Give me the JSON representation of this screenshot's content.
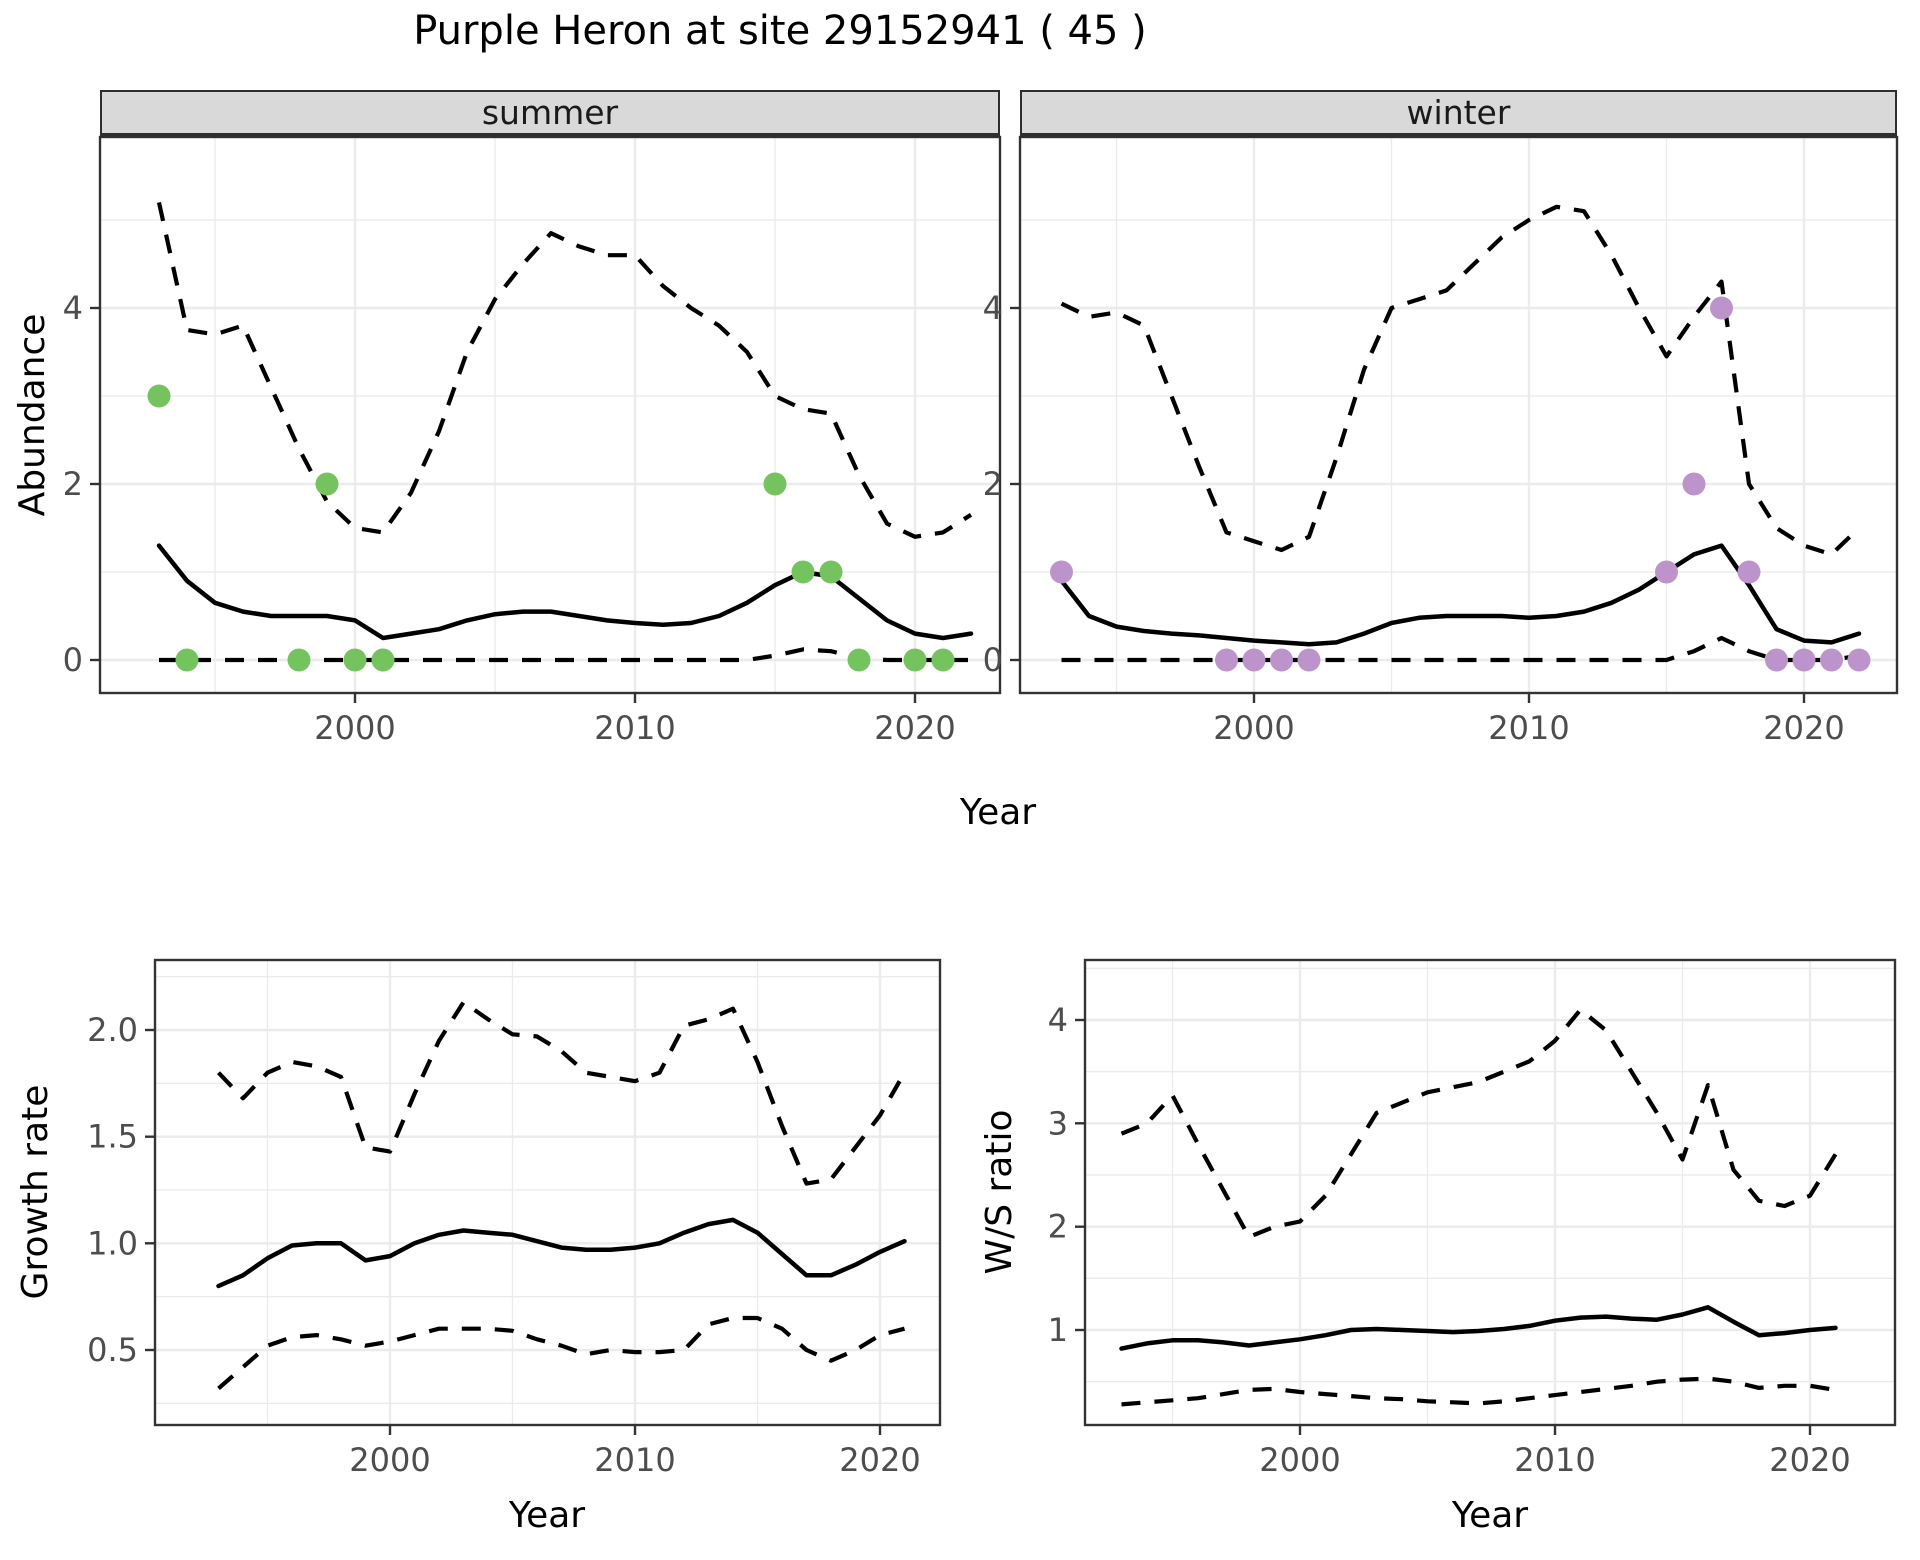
{
  "title": "Purple Heron at site 29152941 ( 45 )",
  "labels": {
    "year_axis": "Year",
    "abundance_axis": "Abundance",
    "growth_axis": "Growth rate",
    "ws_axis": "W/S ratio"
  },
  "facets": [
    {
      "label": "summer"
    },
    {
      "label": "winter"
    }
  ],
  "colors": {
    "summer_points": "#74c35e",
    "winter_points": "#bd93cc",
    "line": "#000000",
    "gridline": "#ebebeb",
    "panel_border": "#333333",
    "strip_bg": "#d9d9d9",
    "tick_text": "#4d4d4d"
  },
  "chart_data": [
    {
      "id": "summer-abundance",
      "type": "line",
      "facet": "summer",
      "xlabel": "Year",
      "ylabel": "Abundance",
      "legend": "none",
      "grid": true,
      "ylim": [
        0,
        5.9
      ],
      "x_ticks": [
        "2000",
        "2010",
        "2020"
      ],
      "x_minor": [
        1995,
        2005,
        2015
      ],
      "y_ticks": [
        "0",
        "2",
        "4"
      ],
      "y_minor": [
        1,
        3,
        5
      ],
      "years": [
        1993,
        1994,
        1995,
        1996,
        1997,
        1998,
        1999,
        2000,
        2001,
        2002,
        2003,
        2004,
        2005,
        2006,
        2007,
        2008,
        2009,
        2010,
        2011,
        2012,
        2013,
        2014,
        2015,
        2016,
        2017,
        2018,
        2019,
        2020,
        2021,
        2022
      ],
      "series": [
        {
          "name": "mean",
          "style": "solid",
          "values": [
            1.3,
            0.9,
            0.65,
            0.55,
            0.5,
            0.5,
            0.5,
            0.45,
            0.25,
            0.3,
            0.35,
            0.45,
            0.52,
            0.55,
            0.55,
            0.5,
            0.45,
            0.42,
            0.4,
            0.42,
            0.5,
            0.65,
            0.85,
            1.0,
            0.95,
            0.7,
            0.45,
            0.3,
            0.25,
            0.3
          ]
        },
        {
          "name": "upper-ci",
          "style": "dashed",
          "values": [
            5.2,
            3.75,
            3.7,
            3.8,
            3.1,
            2.4,
            1.8,
            1.5,
            1.45,
            1.9,
            2.6,
            3.5,
            4.1,
            4.5,
            4.85,
            4.7,
            4.6,
            4.6,
            4.25,
            4.0,
            3.8,
            3.5,
            3.0,
            2.85,
            2.8,
            2.1,
            1.55,
            1.4,
            1.45,
            1.65
          ]
        },
        {
          "name": "lower-ci",
          "style": "dashed",
          "values": [
            0,
            0,
            0,
            0,
            0,
            0,
            0,
            0,
            0,
            0,
            0,
            0,
            0,
            0,
            0,
            0,
            0,
            0,
            0,
            0,
            0,
            0,
            0.05,
            0.12,
            0.1,
            0.02,
            0,
            0,
            0,
            0
          ]
        }
      ],
      "observations": {
        "color": "#74c35e",
        "points": [
          [
            1993,
            3
          ],
          [
            1994,
            0
          ],
          [
            1998,
            0
          ],
          [
            1999,
            2
          ],
          [
            2000,
            0
          ],
          [
            2001,
            0
          ],
          [
            2015,
            2
          ],
          [
            2016,
            1
          ],
          [
            2017,
            1
          ],
          [
            2018,
            0
          ],
          [
            2020,
            0
          ],
          [
            2021,
            0
          ]
        ]
      }
    },
    {
      "id": "winter-abundance",
      "type": "line",
      "facet": "winter",
      "xlabel": "Year",
      "ylabel": "Abundance",
      "legend": "none",
      "grid": true,
      "ylim": [
        0,
        5.9
      ],
      "x_ticks": [
        "2000",
        "2010",
        "2020"
      ],
      "x_minor": [
        1995,
        2005,
        2015
      ],
      "y_ticks": [
        "0",
        "2",
        "4"
      ],
      "y_minor": [
        1,
        3,
        5
      ],
      "years": [
        1993,
        1994,
        1995,
        1996,
        1997,
        1998,
        1999,
        2000,
        2001,
        2002,
        2003,
        2004,
        2005,
        2006,
        2007,
        2008,
        2009,
        2010,
        2011,
        2012,
        2013,
        2014,
        2015,
        2016,
        2017,
        2018,
        2019,
        2020,
        2021,
        2022
      ],
      "series": [
        {
          "name": "mean",
          "style": "solid",
          "values": [
            0.9,
            0.5,
            0.38,
            0.33,
            0.3,
            0.28,
            0.25,
            0.22,
            0.2,
            0.18,
            0.2,
            0.3,
            0.42,
            0.48,
            0.5,
            0.5,
            0.5,
            0.48,
            0.5,
            0.55,
            0.65,
            0.8,
            1.0,
            1.2,
            1.3,
            0.85,
            0.35,
            0.22,
            0.2,
            0.3
          ]
        },
        {
          "name": "upper-ci",
          "style": "dashed",
          "values": [
            4.05,
            3.9,
            3.95,
            3.8,
            3.0,
            2.2,
            1.45,
            1.35,
            1.25,
            1.4,
            2.3,
            3.3,
            4.0,
            4.1,
            4.2,
            4.5,
            4.8,
            5.0,
            5.15,
            5.1,
            4.6,
            4.0,
            3.45,
            3.9,
            4.3,
            2.0,
            1.5,
            1.3,
            1.2,
            1.5
          ]
        },
        {
          "name": "lower-ci",
          "style": "dashed",
          "values": [
            0,
            0,
            0,
            0,
            0,
            0,
            0,
            0,
            0,
            0,
            0,
            0,
            0,
            0,
            0,
            0,
            0,
            0,
            0,
            0,
            0,
            0,
            0,
            0.1,
            0.25,
            0.1,
            0,
            0,
            0,
            0.05
          ]
        }
      ],
      "observations": {
        "color": "#bd93cc",
        "points": [
          [
            1993,
            1
          ],
          [
            1999,
            0
          ],
          [
            2000,
            0
          ],
          [
            2001,
            0
          ],
          [
            2002,
            0
          ],
          [
            2015,
            1
          ],
          [
            2016,
            2
          ],
          [
            2017,
            4
          ],
          [
            2018,
            1
          ],
          [
            2019,
            0
          ],
          [
            2020,
            0
          ],
          [
            2021,
            0
          ],
          [
            2022,
            0
          ]
        ]
      }
    },
    {
      "id": "growth-rate",
      "type": "line",
      "facet": "",
      "xlabel": "Year",
      "ylabel": "Growth rate",
      "legend": "none",
      "grid": true,
      "ylim": [
        0.2,
        2.3
      ],
      "x_ticks": [
        "2000",
        "2010",
        "2020"
      ],
      "x_minor": [
        1995,
        2005,
        2015
      ],
      "y_ticks": [
        "0.5",
        "1.0",
        "1.5",
        "2.0"
      ],
      "y_minor": [
        0.25,
        0.75,
        1.25,
        1.75,
        2.25
      ],
      "years": [
        1993,
        1994,
        1995,
        1996,
        1997,
        1998,
        1999,
        2000,
        2001,
        2002,
        2003,
        2004,
        2005,
        2006,
        2007,
        2008,
        2009,
        2010,
        2011,
        2012,
        2013,
        2014,
        2015,
        2016,
        2017,
        2018,
        2019,
        2020,
        2021
      ],
      "series": [
        {
          "name": "mean",
          "style": "solid",
          "values": [
            0.8,
            0.85,
            0.93,
            0.99,
            1.0,
            1.0,
            0.92,
            0.94,
            1.0,
            1.04,
            1.06,
            1.05,
            1.04,
            1.01,
            0.98,
            0.97,
            0.97,
            0.98,
            1.0,
            1.05,
            1.09,
            1.11,
            1.05,
            0.95,
            0.85,
            0.85,
            0.9,
            0.96,
            1.01
          ]
        },
        {
          "name": "upper-ci",
          "style": "dashed",
          "values": [
            1.8,
            1.68,
            1.8,
            1.85,
            1.83,
            1.78,
            1.45,
            1.43,
            1.7,
            1.95,
            2.13,
            2.05,
            1.98,
            1.97,
            1.9,
            1.8,
            1.78,
            1.76,
            1.8,
            2.02,
            2.05,
            2.1,
            1.85,
            1.55,
            1.28,
            1.3,
            1.45,
            1.6,
            1.8
          ]
        },
        {
          "name": "lower-ci",
          "style": "dashed",
          "values": [
            0.32,
            0.42,
            0.52,
            0.56,
            0.57,
            0.55,
            0.52,
            0.54,
            0.57,
            0.6,
            0.6,
            0.6,
            0.59,
            0.55,
            0.52,
            0.48,
            0.5,
            0.49,
            0.49,
            0.5,
            0.62,
            0.65,
            0.65,
            0.6,
            0.5,
            0.45,
            0.5,
            0.57,
            0.6
          ]
        }
      ]
    },
    {
      "id": "ws-ratio",
      "type": "line",
      "facet": "",
      "xlabel": "Year",
      "ylabel": "W/S ratio",
      "legend": "none",
      "grid": true,
      "ylim": [
        0.1,
        4.5
      ],
      "x_ticks": [
        "2000",
        "2010",
        "2020"
      ],
      "x_minor": [
        1995,
        2005,
        2015
      ],
      "y_ticks": [
        "1",
        "2",
        "3",
        "4"
      ],
      "y_minor": [
        0.5,
        1.5,
        2.5,
        3.5,
        4.5
      ],
      "years": [
        1993,
        1994,
        1995,
        1996,
        1997,
        1998,
        1999,
        2000,
        2001,
        2002,
        2003,
        2004,
        2005,
        2006,
        2007,
        2008,
        2009,
        2010,
        2011,
        2012,
        2013,
        2014,
        2015,
        2016,
        2017,
        2018,
        2019,
        2020,
        2021
      ],
      "series": [
        {
          "name": "mean",
          "style": "solid",
          "values": [
            0.82,
            0.87,
            0.9,
            0.9,
            0.88,
            0.85,
            0.88,
            0.91,
            0.95,
            1.0,
            1.01,
            1.0,
            0.99,
            0.98,
            0.99,
            1.01,
            1.04,
            1.09,
            1.12,
            1.13,
            1.11,
            1.1,
            1.15,
            1.22,
            1.08,
            0.95,
            0.97,
            1.0,
            1.02
          ]
        },
        {
          "name": "upper-ci",
          "style": "dashed",
          "values": [
            2.9,
            3.0,
            3.27,
            2.8,
            2.35,
            1.9,
            2.0,
            2.05,
            2.3,
            2.7,
            3.1,
            3.2,
            3.3,
            3.35,
            3.4,
            3.5,
            3.6,
            3.8,
            4.1,
            3.9,
            3.5,
            3.1,
            2.65,
            3.37,
            2.55,
            2.25,
            2.2,
            2.3,
            2.7
          ]
        },
        {
          "name": "lower-ci",
          "style": "dashed",
          "values": [
            0.28,
            0.3,
            0.32,
            0.34,
            0.38,
            0.42,
            0.43,
            0.4,
            0.38,
            0.36,
            0.34,
            0.33,
            0.31,
            0.3,
            0.29,
            0.31,
            0.34,
            0.37,
            0.4,
            0.43,
            0.46,
            0.5,
            0.52,
            0.53,
            0.5,
            0.44,
            0.46,
            0.46,
            0.42
          ]
        }
      ]
    }
  ]
}
